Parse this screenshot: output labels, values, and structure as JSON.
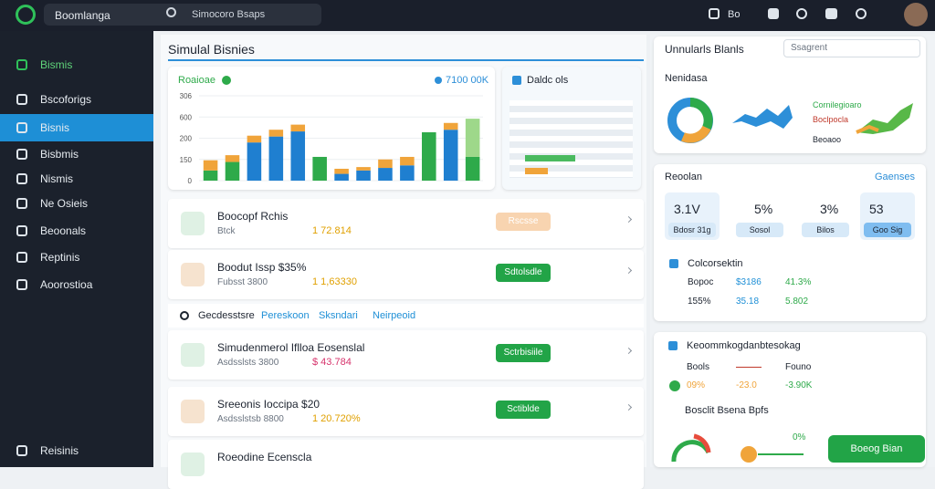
{
  "topbar": {
    "brand": "Boomlanga",
    "search": "Simocoro Bsaps",
    "badge": "Bo"
  },
  "sidebar": {
    "items": [
      "Bismis",
      "Bscoforigs",
      "Bisnis",
      "Bisbmis",
      "Nismis",
      "Ne Osieis",
      "Beoonals",
      "Reptinis",
      "Aoorostioa"
    ],
    "footer": "Reisinis"
  },
  "main": {
    "title": "Simulal Bisnies",
    "chart_card": {
      "title": "Roaioae",
      "total": "7100 00K",
      "chart": {
        "type": "bar",
        "y_labels": [
          "306",
          "600",
          "200",
          "150",
          "0"
        ],
        "ylim": [
          0,
          100
        ],
        "series": [
          {
            "color": "#1f7fd0",
            "values": [
              0,
              0,
              45,
              52,
              58,
              0,
              8,
              12,
              15,
              18,
              0,
              60,
              0
            ]
          },
          {
            "color": "#2eaa4a",
            "values": [
              12,
              22,
              0,
              0,
              0,
              28,
              0,
              0,
              0,
              0,
              57,
              0,
              28
            ]
          },
          {
            "color": "#f0a43a",
            "values": [
              12,
              8,
              8,
              8,
              8,
              0,
              6,
              4,
              10,
              10,
              0,
              8,
              0
            ]
          },
          {
            "color": "#9ed88a",
            "values": [
              0,
              0,
              0,
              0,
              0,
              0,
              0,
              0,
              0,
              0,
              0,
              0,
              45
            ]
          }
        ]
      }
    },
    "side_card": {
      "title": "Daldc ols"
    },
    "rows": [
      {
        "title": "Boocopf Rchis",
        "sub": "Btck",
        "amount": "1 72.814",
        "action": "Rscsse"
      },
      {
        "title": "Boodut Issp $35%",
        "sub": "Fubsst 3800",
        "amount": "1 1,63330",
        "action": "Sdtolsdle"
      }
    ],
    "tabs": [
      "Gecdesstsre",
      "Pereskoon",
      "Sksndari",
      "Neirpeoid"
    ],
    "rows2": [
      {
        "title": "Simudenmerol Iflloa Eosenslal",
        "sub": "Asdsslsts 3800",
        "amount": "$ 43.784",
        "action": "Sctrbisiile"
      },
      {
        "title": "Sreeonis Ioccipa $20",
        "sub": "Asdsslstsb 8800",
        "amount": "1 20.720%",
        "action": "Sctiblde"
      },
      {
        "title": "Roeodine Ecenscla"
      }
    ]
  },
  "right": {
    "title": "Unnularls Blanls",
    "search": "Ssagrent",
    "overview": "Nenidasa",
    "legend": [
      "Cornilegioaro",
      "Boclpocla",
      "Beoaoo"
    ],
    "card2": {
      "title": "Reoolan",
      "link": "Gaenses",
      "stats": [
        {
          "value": "3.1V",
          "label": "Bdosr 31g"
        },
        {
          "value": "5%",
          "label": "Sosol"
        },
        {
          "value": "3%",
          "label": "Bilos"
        },
        {
          "value": "53",
          "label": "Goo Sig"
        }
      ],
      "heading": "Colcorsektin",
      "rows": [
        [
          "Bopoc",
          "$3186",
          "41.3%"
        ],
        [
          "155%",
          "35.18",
          "5.802"
        ]
      ]
    },
    "card3": {
      "title": "Keoommkogdanbtesokag",
      "cols": [
        "Bools",
        "Founo"
      ],
      "row": [
        "09%",
        "-23.0",
        "-3.90K"
      ],
      "sub": "Bosclit Bsena Bpfs",
      "pct": "0%",
      "button": "Boeog Bian"
    }
  }
}
